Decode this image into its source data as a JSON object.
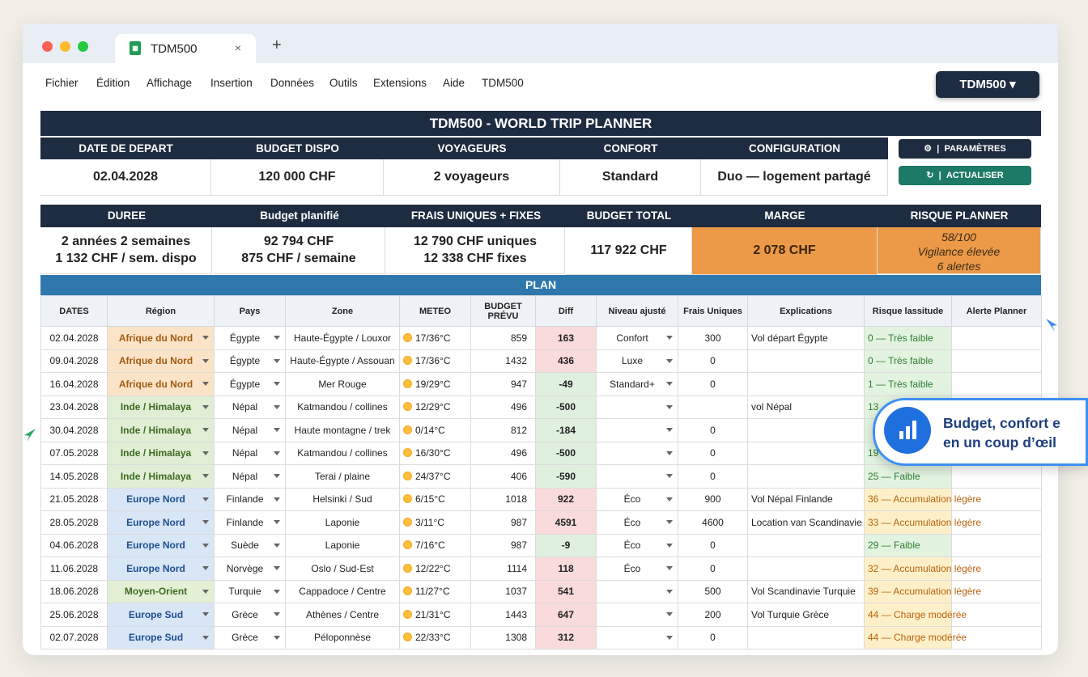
{
  "browser": {
    "tab_title": "TDM500",
    "close_glyph": "×",
    "new_tab_glyph": "+"
  },
  "menu": [
    "Fichier",
    "Édition",
    "Affichage",
    "Insertion",
    "Données",
    "Outils",
    "Extensions",
    "Aide",
    "TDM500"
  ],
  "top_button": "TDM500 ▾",
  "sheet_title": "TDM500 - WORLD TRIP PLANNER",
  "summary1": {
    "headers": [
      "DATE DE DEPART",
      "BUDGET DISPO",
      "VOYAGEURS",
      "CONFORT",
      "CONFIGURATION"
    ],
    "values": [
      "02.04.2028",
      "120 000 CHF",
      "2 voyageurs",
      "Standard",
      "Duo — logement partagé"
    ]
  },
  "buttons": {
    "params": "PARAMÈTRES",
    "refresh": "ACTUALISER"
  },
  "summary2": {
    "headers": [
      "DUREE",
      "Budget planifié",
      "FRAIS UNIQUES + FIXES",
      "BUDGET TOTAL",
      "MARGE",
      "RISQUE PLANNER"
    ],
    "duree": [
      "2 années 2 semaines",
      "1 132 CHF / sem. dispo"
    ],
    "budget_planifie": [
      "92 794 CHF",
      "875 CHF / semaine"
    ],
    "frais": [
      "12 790 CHF uniques",
      "12 338 CHF fixes"
    ],
    "budget_total": "117 922 CHF",
    "marge": "2 078 CHF",
    "risque": [
      "58/100",
      "Vigilance élevée",
      "6 alertes"
    ]
  },
  "plan_label": "PLAN",
  "columns": [
    "DATES",
    "Région",
    "Pays",
    "Zone",
    "METEO",
    "BUDGET PRÉVU",
    "Diff",
    "Niveau ajusté",
    "Frais Uniques",
    "Explications",
    "Risque lassitude",
    "Alerte Planner"
  ],
  "rows": [
    {
      "date": "02.04.2028",
      "region": "Afrique du Nord",
      "rc": "afr",
      "pays": "Égypte",
      "zone": "Haute-Égypte / Louxor",
      "meteo": "17/36°C",
      "budget": "859",
      "diff": "163",
      "niveau": "Confort",
      "frais": "300",
      "expl": "Vol départ Égypte",
      "risque": "0 — Très faible",
      "rk": "g",
      "alerte": ""
    },
    {
      "date": "09.04.2028",
      "region": "Afrique du Nord",
      "rc": "afr",
      "pays": "Égypte",
      "zone": "Haute-Égypte / Assouan",
      "meteo": "17/36°C",
      "budget": "1432",
      "diff": "436",
      "niveau": "Luxe",
      "frais": "0",
      "expl": "",
      "risque": "0 — Très faible",
      "rk": "g",
      "alerte": ""
    },
    {
      "date": "16.04.2028",
      "region": "Afrique du Nord",
      "rc": "afr",
      "pays": "Égypte",
      "zone": "Mer Rouge",
      "meteo": "19/29°C",
      "budget": "947",
      "diff": "-49",
      "niveau": "Standard+",
      "frais": "0",
      "expl": "",
      "risque": "1 — Très faible",
      "rk": "g",
      "alerte": ""
    },
    {
      "date": "23.04.2028",
      "region": "Inde / Himalaya",
      "rc": "ind",
      "pays": "Népal",
      "zone": "Katmandou / collines",
      "meteo": "12/29°C",
      "budget": "496",
      "diff": "-500",
      "niveau": "",
      "frais": "",
      "expl": "vol Népal",
      "risque": "13",
      "rk": "g",
      "alerte": ""
    },
    {
      "date": "30.04.2028",
      "region": "Inde / Himalaya",
      "rc": "ind",
      "pays": "Népal",
      "zone": "Haute montagne / trek",
      "meteo": "0/14°C",
      "budget": "812",
      "diff": "-184",
      "niveau": "",
      "frais": "0",
      "expl": "",
      "risque": "",
      "rk": "g",
      "alerte": ""
    },
    {
      "date": "07.05.2028",
      "region": "Inde / Himalaya",
      "rc": "ind",
      "pays": "Népal",
      "zone": "Katmandou / collines",
      "meteo": "16/30°C",
      "budget": "496",
      "diff": "-500",
      "niveau": "",
      "frais": "0",
      "expl": "",
      "risque": "19",
      "rk": "g",
      "alerte": ""
    },
    {
      "date": "14.05.2028",
      "region": "Inde / Himalaya",
      "rc": "ind",
      "pays": "Népal",
      "zone": "Terai / plaine",
      "meteo": "24/37°C",
      "budget": "406",
      "diff": "-590",
      "niveau": "",
      "frais": "0",
      "expl": "",
      "risque": "25 — Faible",
      "rk": "g",
      "alerte": ""
    },
    {
      "date": "21.05.2028",
      "region": "Europe Nord",
      "rc": "eur",
      "pays": "Finlande",
      "zone": "Helsinki / Sud",
      "meteo": "6/15°C",
      "budget": "1018",
      "diff": "922",
      "niveau": "Éco",
      "frais": "900",
      "expl": "Vol Népal Finlande",
      "risque": "36 — Accumulation légère",
      "rk": "y",
      "alerte": ""
    },
    {
      "date": "28.05.2028",
      "region": "Europe Nord",
      "rc": "eur",
      "pays": "Finlande",
      "zone": "Laponie",
      "meteo": "3/11°C",
      "budget": "987",
      "diff": "4591",
      "niveau": "Éco",
      "frais": "4600",
      "expl": "Location van Scandinavie",
      "risque": "33 — Accumulation légère",
      "rk": "y",
      "alerte": ""
    },
    {
      "date": "04.06.2028",
      "region": "Europe Nord",
      "rc": "eur",
      "pays": "Suède",
      "zone": "Laponie",
      "meteo": "7/16°C",
      "budget": "987",
      "diff": "-9",
      "niveau": "Éco",
      "frais": "0",
      "expl": "",
      "risque": "29 — Faible",
      "rk": "g",
      "alerte": ""
    },
    {
      "date": "11.06.2028",
      "region": "Europe Nord",
      "rc": "eur",
      "pays": "Norvège",
      "zone": "Oslo / Sud-Est",
      "meteo": "12/22°C",
      "budget": "1114",
      "diff": "118",
      "niveau": "Éco",
      "frais": "0",
      "expl": "",
      "risque": "32 — Accumulation légère",
      "rk": "y",
      "alerte": ""
    },
    {
      "date": "18.06.2028",
      "region": "Moyen-Orient",
      "rc": "mo",
      "pays": "Turquie",
      "zone": "Cappadoce / Centre",
      "meteo": "11/27°C",
      "budget": "1037",
      "diff": "541",
      "niveau": "",
      "frais": "500",
      "expl": "Vol Scandinavie Turquie",
      "risque": "39 — Accumulation légère",
      "rk": "y",
      "alerte": ""
    },
    {
      "date": "25.06.2028",
      "region": "Europe Sud",
      "rc": "eur",
      "pays": "Grèce",
      "zone": "Athènes / Centre",
      "meteo": "21/31°C",
      "budget": "1443",
      "diff": "647",
      "niveau": "",
      "frais": "200",
      "expl": "Vol Turquie Grèce",
      "risque": "44 — Charge modérée",
      "rk": "y",
      "alerte": ""
    },
    {
      "date": "02.07.2028",
      "region": "Europe Sud",
      "rc": "eur",
      "pays": "Grèce",
      "zone": "Péloponnèse",
      "meteo": "22/33°C",
      "budget": "1308",
      "diff": "312",
      "niveau": "",
      "frais": "0",
      "expl": "",
      "risque": "44 — Charge modérée",
      "rk": "y",
      "alerte": ""
    }
  ],
  "popup": {
    "line1": "Budget, confort e",
    "line2": "en un coup d’œil"
  }
}
